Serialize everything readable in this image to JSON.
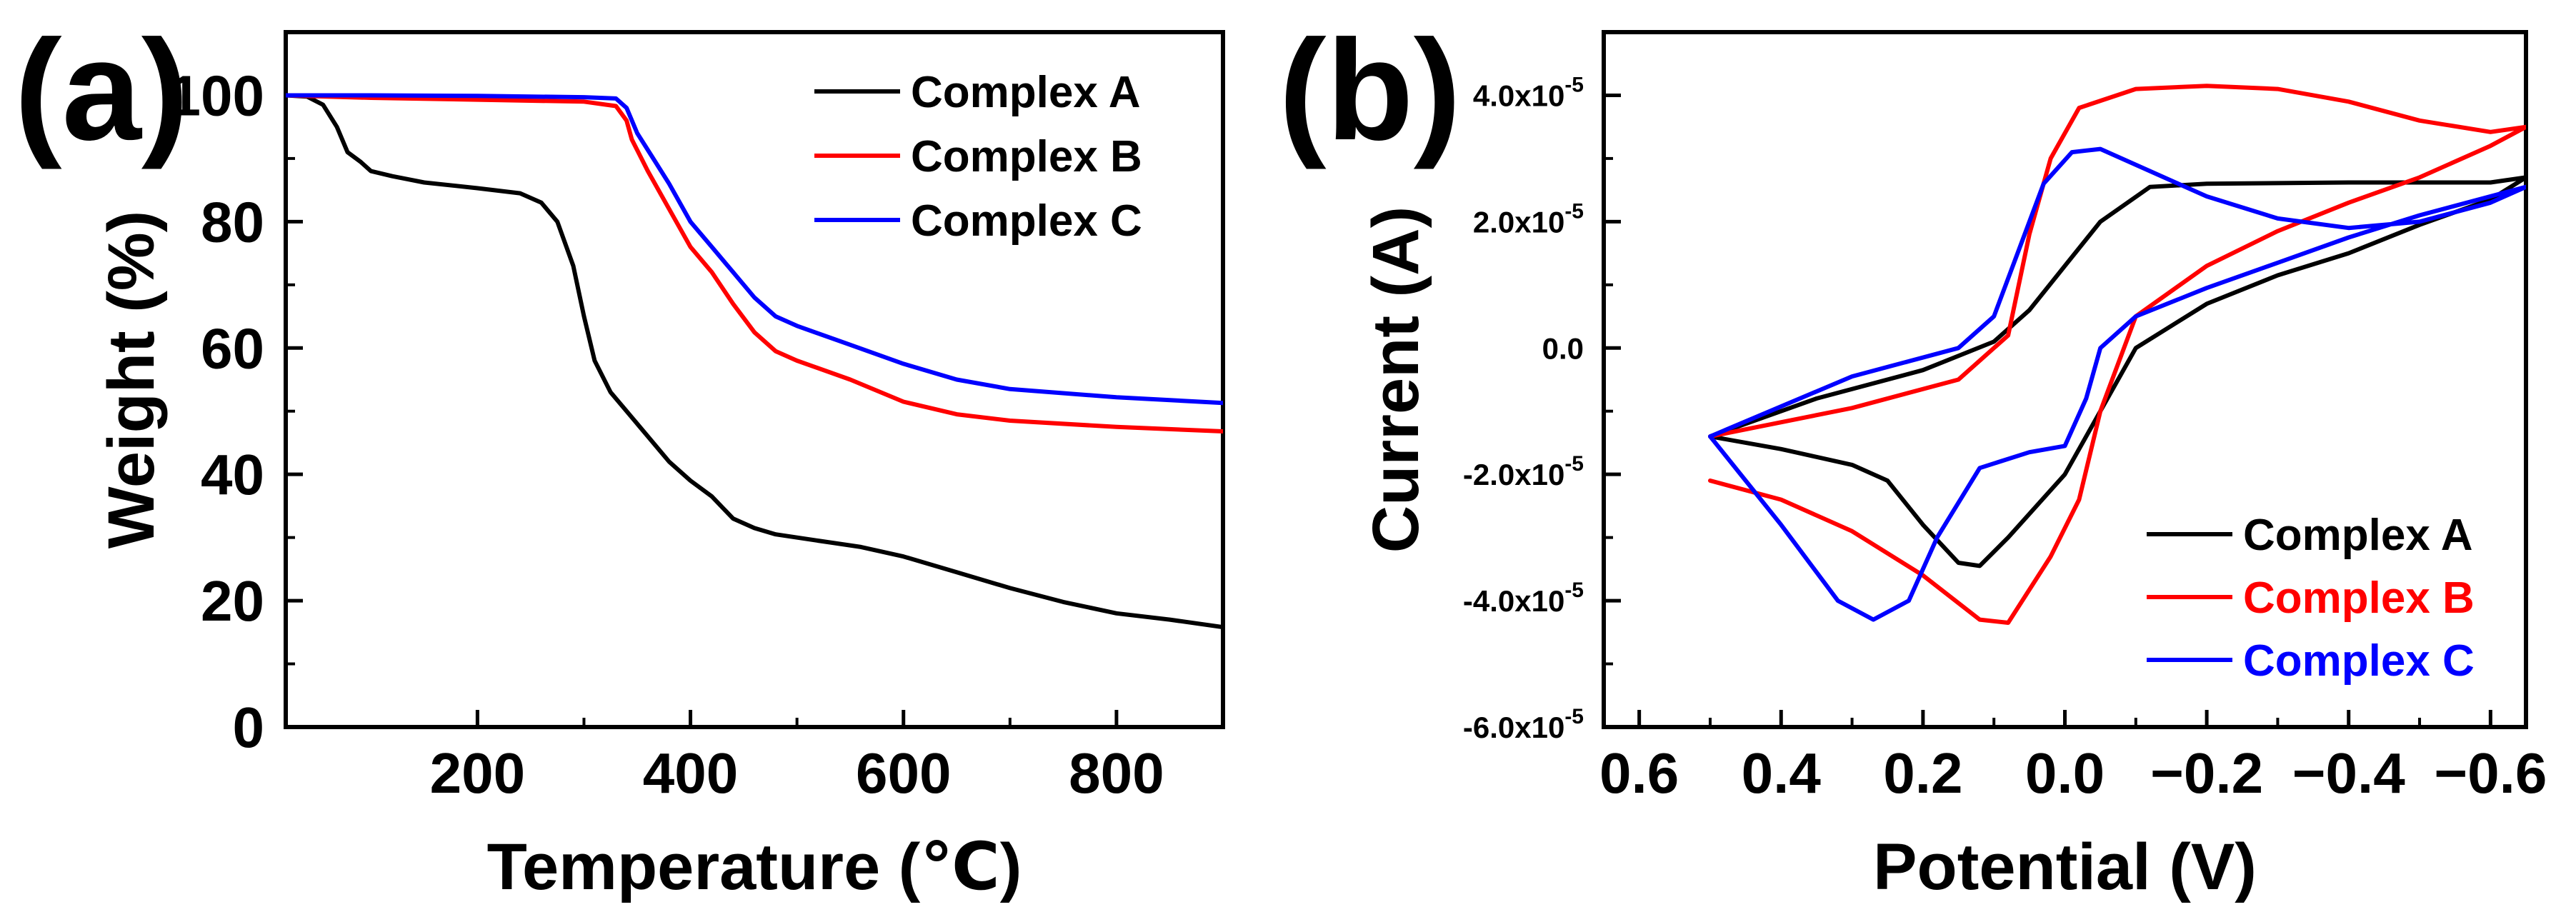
{
  "chart_data": [
    {
      "panel_label": "(a)",
      "type": "line",
      "title": "",
      "xlabel": "Temperature (℃)",
      "ylabel": "Weight (%)",
      "xlim": [
        20,
        900
      ],
      "ylim": [
        0,
        110
      ],
      "xticks": [
        200,
        400,
        600,
        800
      ],
      "yticks": [
        0,
        20,
        40,
        60,
        80,
        100
      ],
      "grid": false,
      "legend_position": "top-right",
      "series": [
        {
          "name": "Complex A",
          "color": "#000000",
          "points": [
            [
              20,
              100
            ],
            [
              40,
              99.8
            ],
            [
              55,
              98.5
            ],
            [
              68,
              95
            ],
            [
              78,
              91
            ],
            [
              90,
              89.5
            ],
            [
              100,
              88
            ],
            [
              120,
              87.2
            ],
            [
              150,
              86.2
            ],
            [
              200,
              85.3
            ],
            [
              240,
              84.5
            ],
            [
              260,
              83
            ],
            [
              275,
              80
            ],
            [
              290,
              73
            ],
            [
              300,
              65
            ],
            [
              310,
              58
            ],
            [
              325,
              53
            ],
            [
              340,
              50
            ],
            [
              360,
              46
            ],
            [
              380,
              42
            ],
            [
              400,
              39
            ],
            [
              420,
              36.5
            ],
            [
              440,
              33
            ],
            [
              460,
              31.5
            ],
            [
              480,
              30.5
            ],
            [
              520,
              29.5
            ],
            [
              560,
              28.5
            ],
            [
              600,
              27
            ],
            [
              650,
              24.5
            ],
            [
              700,
              22
            ],
            [
              750,
              19.8
            ],
            [
              800,
              18
            ],
            [
              850,
              17
            ],
            [
              900,
              15.8
            ]
          ]
        },
        {
          "name": "Complex B",
          "color": "#ff0000",
          "points": [
            [
              20,
              100
            ],
            [
              100,
              99.6
            ],
            [
              200,
              99.3
            ],
            [
              300,
              99
            ],
            [
              330,
              98.3
            ],
            [
              340,
              96
            ],
            [
              345,
              93
            ],
            [
              360,
              88
            ],
            [
              380,
              82
            ],
            [
              400,
              76
            ],
            [
              420,
              72
            ],
            [
              440,
              67
            ],
            [
              460,
              62.5
            ],
            [
              480,
              59.5
            ],
            [
              500,
              58
            ],
            [
              550,
              55
            ],
            [
              600,
              51.5
            ],
            [
              650,
              49.5
            ],
            [
              700,
              48.5
            ],
            [
              800,
              47.5
            ],
            [
              900,
              46.8
            ]
          ]
        },
        {
          "name": "Complex C",
          "color": "#0000ff",
          "points": [
            [
              20,
              100
            ],
            [
              100,
              100
            ],
            [
              200,
              99.9
            ],
            [
              300,
              99.7
            ],
            [
              330,
              99.5
            ],
            [
              340,
              98
            ],
            [
              350,
              94
            ],
            [
              365,
              90
            ],
            [
              380,
              86
            ],
            [
              400,
              80
            ],
            [
              420,
              76
            ],
            [
              440,
              72
            ],
            [
              460,
              68
            ],
            [
              480,
              65
            ],
            [
              500,
              63.5
            ],
            [
              550,
              60.5
            ],
            [
              600,
              57.5
            ],
            [
              650,
              55
            ],
            [
              700,
              53.5
            ],
            [
              800,
              52.2
            ],
            [
              900,
              51.3
            ]
          ]
        }
      ]
    },
    {
      "panel_label": "(b)",
      "type": "line",
      "title": "",
      "xlabel": "Potential (V)",
      "ylabel": "Current (A)",
      "x_reversed": true,
      "xlim": [
        0.65,
        -0.65
      ],
      "ylim": [
        -6e-05,
        5e-05
      ],
      "xticks": [
        0.6,
        0.4,
        0.2,
        0.0,
        -0.2,
        -0.4,
        -0.6
      ],
      "xtick_labels": [
        "0.6",
        "0.4",
        "0.2",
        "0.0",
        "−0.2",
        "−0.4",
        "−0.6"
      ],
      "yticks": [
        -6e-05,
        -4e-05,
        -2e-05,
        0,
        2e-05,
        4e-05
      ],
      "ytick_labels": [
        {
          "base": "-6.0x10",
          "exp": "-5"
        },
        {
          "base": "-4.0x10",
          "exp": "-5"
        },
        {
          "base": "-2.0x10",
          "exp": "-5"
        },
        {
          "base": "0.0",
          "exp": ""
        },
        {
          "base": "2.0x10",
          "exp": "-5"
        },
        {
          "base": "4.0x10",
          "exp": "-5"
        }
      ],
      "grid": false,
      "legend_position": "bottom-right",
      "series": [
        {
          "name": "Complex A",
          "color": "#000000",
          "points": [
            [
              0.5,
              -1.4e-05
            ],
            [
              0.4,
              -1.6e-05
            ],
            [
              0.3,
              -1.85e-05
            ],
            [
              0.25,
              -2.1e-05
            ],
            [
              0.2,
              -2.8e-05
            ],
            [
              0.15,
              -3.4e-05
            ],
            [
              0.12,
              -3.45e-05
            ],
            [
              0.08,
              -3e-05
            ],
            [
              0.0,
              -2e-05
            ],
            [
              -0.05,
              -1e-05
            ],
            [
              -0.1,
              0.0
            ],
            [
              -0.2,
              7e-06
            ],
            [
              -0.3,
              1.15e-05
            ],
            [
              -0.4,
              1.5e-05
            ],
            [
              -0.5,
              1.95e-05
            ],
            [
              -0.6,
              2.35e-05
            ],
            [
              -0.65,
              2.7e-05
            ],
            [
              -0.6,
              2.62e-05
            ],
            [
              -0.4,
              2.62e-05
            ],
            [
              -0.2,
              2.6e-05
            ],
            [
              -0.12,
              2.55e-05
            ],
            [
              -0.05,
              2e-05
            ],
            [
              0.0,
              1.3e-05
            ],
            [
              0.05,
              6e-06
            ],
            [
              0.1,
              1e-06
            ],
            [
              0.2,
              -3.5e-06
            ],
            [
              0.35,
              -8e-06
            ],
            [
              0.5,
              -1.4e-05
            ]
          ]
        },
        {
          "name": "Complex B",
          "color": "#ff0000",
          "points": [
            [
              0.5,
              -2.1e-05
            ],
            [
              0.4,
              -2.4e-05
            ],
            [
              0.3,
              -2.9e-05
            ],
            [
              0.2,
              -3.6e-05
            ],
            [
              0.12,
              -4.3e-05
            ],
            [
              0.08,
              -4.35e-05
            ],
            [
              0.02,
              -3.3e-05
            ],
            [
              -0.02,
              -2.4e-05
            ],
            [
              -0.05,
              -1e-05
            ],
            [
              -0.1,
              5e-06
            ],
            [
              -0.2,
              1.3e-05
            ],
            [
              -0.3,
              1.85e-05
            ],
            [
              -0.4,
              2.3e-05
            ],
            [
              -0.5,
              2.7e-05
            ],
            [
              -0.6,
              3.2e-05
            ],
            [
              -0.65,
              3.5e-05
            ],
            [
              -0.6,
              3.42e-05
            ],
            [
              -0.5,
              3.6e-05
            ],
            [
              -0.4,
              3.9e-05
            ],
            [
              -0.3,
              4.1e-05
            ],
            [
              -0.2,
              4.15e-05
            ],
            [
              -0.1,
              4.1e-05
            ],
            [
              -0.02,
              3.8e-05
            ],
            [
              0.02,
              3e-05
            ],
            [
              0.05,
              1.8e-05
            ],
            [
              0.08,
              2e-06
            ],
            [
              0.15,
              -5e-06
            ],
            [
              0.3,
              -9.5e-06
            ],
            [
              0.5,
              -1.4e-05
            ]
          ]
        },
        {
          "name": "Complex C",
          "color": "#0000ff",
          "points": [
            [
              0.5,
              -1.4e-05
            ],
            [
              0.4,
              -2.8e-05
            ],
            [
              0.32,
              -4e-05
            ],
            [
              0.27,
              -4.3e-05
            ],
            [
              0.22,
              -4e-05
            ],
            [
              0.18,
              -3e-05
            ],
            [
              0.12,
              -1.9e-05
            ],
            [
              0.05,
              -1.65e-05
            ],
            [
              0.0,
              -1.55e-05
            ],
            [
              -0.03,
              -8e-06
            ],
            [
              -0.05,
              0.0
            ],
            [
              -0.1,
              5e-06
            ],
            [
              -0.2,
              9.5e-06
            ],
            [
              -0.3,
              1.35e-05
            ],
            [
              -0.4,
              1.75e-05
            ],
            [
              -0.5,
              2.1e-05
            ],
            [
              -0.65,
              2.55e-05
            ],
            [
              -0.6,
              2.3e-05
            ],
            [
              -0.5,
              2e-05
            ],
            [
              -0.4,
              1.9e-05
            ],
            [
              -0.3,
              2.05e-05
            ],
            [
              -0.2,
              2.4e-05
            ],
            [
              -0.1,
              2.9e-05
            ],
            [
              -0.05,
              3.15e-05
            ],
            [
              -0.01,
              3.1e-05
            ],
            [
              0.03,
              2.6e-05
            ],
            [
              0.07,
              1.4e-05
            ],
            [
              0.1,
              5e-06
            ],
            [
              0.15,
              0.0
            ],
            [
              0.3,
              -4.5e-06
            ],
            [
              0.5,
              -1.4e-05
            ]
          ]
        }
      ]
    }
  ]
}
